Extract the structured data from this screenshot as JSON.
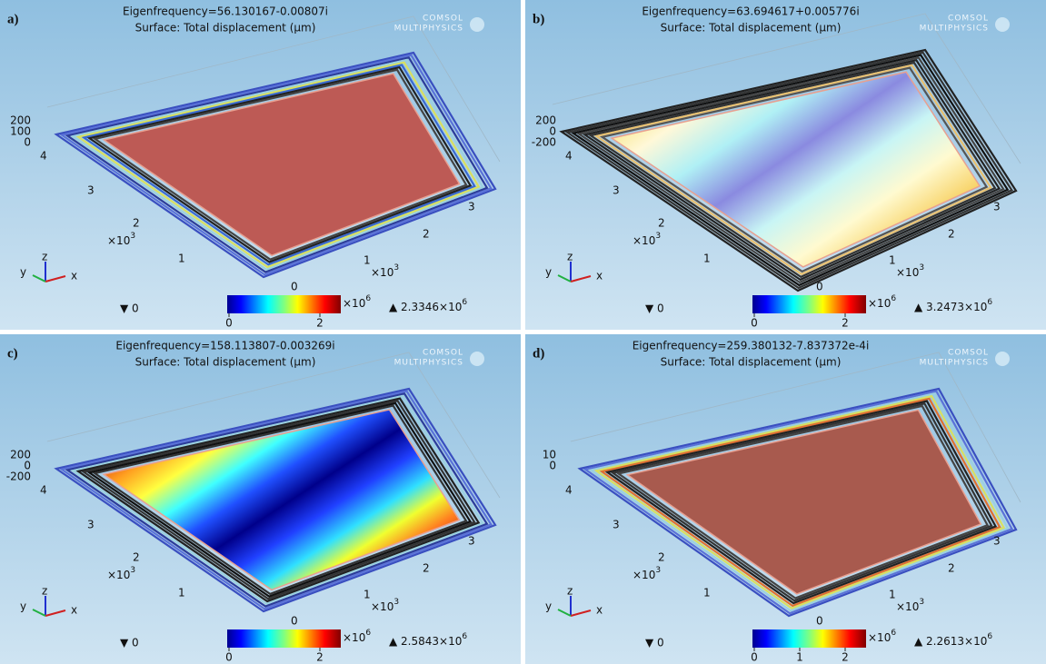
{
  "panels": [
    {
      "label": "a)",
      "title": "Eigenfrequency=56.130167-0.00807i",
      "subtitle": "Surface: Total displacement (μm)",
      "logo": [
        "COMSOL",
        "MULTIPHYSICS"
      ],
      "z_ticks": [
        "200",
        "100",
        "0"
      ],
      "y_ticks": [
        "4",
        "3",
        "2",
        "1"
      ],
      "y_multiplier": "×10",
      "y_exponent": "3",
      "x_ticks": [
        "0",
        "1",
        "2",
        "3"
      ],
      "x_multiplier": "×10",
      "x_exponent": "3",
      "triad": [
        "z",
        "y",
        "x"
      ],
      "min_label": "▼ 0",
      "colorbar_ticks": [
        "0",
        "2"
      ],
      "colorbar_multiplier": "×10",
      "colorbar_exponent": "6",
      "max_label": "▲ 2.3346×10",
      "max_exponent": "6"
    },
    {
      "label": "b)",
      "title": "Eigenfrequency=63.694617+0.005776i",
      "subtitle": "Surface: Total displacement (μm)",
      "logo": [
        "COMSOL",
        "MULTIPHYSICS"
      ],
      "z_ticks": [
        "200",
        "0",
        "-200"
      ],
      "y_ticks": [
        "4",
        "3",
        "2",
        "1"
      ],
      "y_multiplier": "×10",
      "y_exponent": "3",
      "x_ticks": [
        "0",
        "1",
        "2",
        "3"
      ],
      "x_multiplier": "×10",
      "x_exponent": "3",
      "triad": [
        "z",
        "y",
        "x"
      ],
      "min_label": "▼ 0",
      "colorbar_ticks": [
        "0",
        "2"
      ],
      "colorbar_multiplier": "×10",
      "colorbar_exponent": "6",
      "max_label": "▲ 3.2473×10",
      "max_exponent": "6"
    },
    {
      "label": "c)",
      "title": "Eigenfrequency=158.113807-0.003269i",
      "subtitle": "Surface: Total displacement (μm)",
      "logo": [
        "COMSOL",
        "MULTIPHYSICS"
      ],
      "z_ticks": [
        "200",
        "0",
        "-200"
      ],
      "y_ticks": [
        "4",
        "3",
        "2",
        "1"
      ],
      "y_multiplier": "×10",
      "y_exponent": "3",
      "x_ticks": [
        "0",
        "1",
        "2",
        "3"
      ],
      "x_multiplier": "×10",
      "x_exponent": "3",
      "triad": [
        "z",
        "y",
        "x"
      ],
      "min_label": "▼ 0",
      "colorbar_ticks": [
        "0",
        "2"
      ],
      "colorbar_multiplier": "×10",
      "colorbar_exponent": "6",
      "max_label": "▲ 2.5843×10",
      "max_exponent": "6"
    },
    {
      "label": "d)",
      "title": "Eigenfrequency=259.380132-7.837372e-4i",
      "subtitle": "Surface: Total displacement (μm)",
      "logo": [
        "COMSOL",
        "MULTIPHYSICS"
      ],
      "z_ticks": [
        "10",
        "0"
      ],
      "y_ticks": [
        "4",
        "3",
        "2",
        "1"
      ],
      "y_multiplier": "×10",
      "y_exponent": "3",
      "x_ticks": [
        "0",
        "1",
        "2",
        "3"
      ],
      "x_multiplier": "×10",
      "x_exponent": "3",
      "triad": [
        "z",
        "y",
        "x"
      ],
      "min_label": "▼ 0",
      "colorbar_ticks": [
        "0",
        "1",
        "2"
      ],
      "colorbar_multiplier": "×10",
      "colorbar_exponent": "6",
      "max_label": "▲ 2.2613×10",
      "max_exponent": "6"
    }
  ]
}
